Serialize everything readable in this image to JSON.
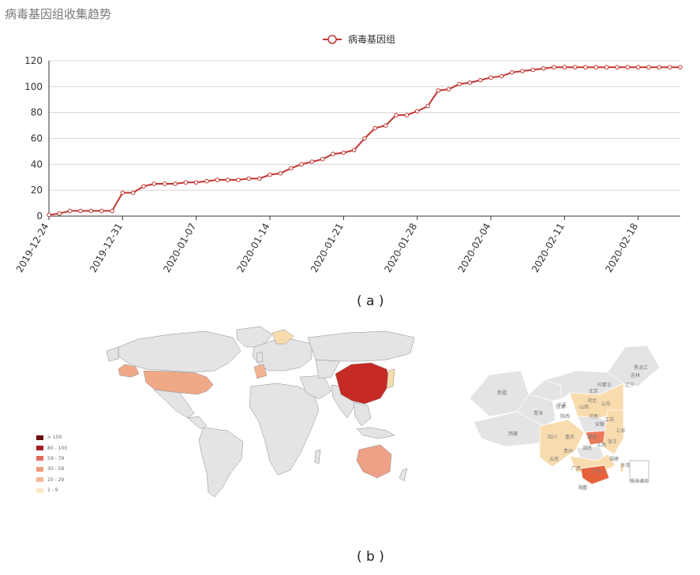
{
  "title": "病毒基因组收集趋势",
  "caption_a": "( a )",
  "caption_b": "( b )",
  "chart_data": {
    "type": "line",
    "series": [
      {
        "name": "病毒基因组",
        "color": "#c23531",
        "values": [
          1,
          2,
          4,
          4,
          4,
          4,
          4,
          18,
          18,
          23,
          25,
          25,
          25,
          26,
          26,
          27,
          28,
          28,
          28,
          29,
          29,
          32,
          33,
          37,
          40,
          42,
          44,
          48,
          49,
          51,
          60,
          68,
          70,
          78,
          78,
          81,
          85,
          97,
          98,
          102,
          103,
          105,
          107,
          108,
          111,
          112,
          113,
          114,
          115,
          115,
          115,
          115,
          115,
          115,
          115,
          115,
          115,
          115,
          115,
          115,
          115
        ]
      }
    ],
    "x_start": "2019-12-24",
    "x_end": "2020-02-22",
    "xticks": [
      "2019-12-24",
      "2019-12-31",
      "2020-01-07",
      "2020-01-14",
      "2020-01-21",
      "2020-01-28",
      "2020-02-04",
      "2020-02-11",
      "2020-02-18"
    ],
    "ylim": [
      0,
      120
    ],
    "yticks": [
      0,
      20,
      40,
      60,
      80,
      100,
      120
    ],
    "grid": true,
    "legend_position": "top-center"
  },
  "map_legend": [
    {
      "label": "> 100",
      "color": "#6b0f0f"
    },
    {
      "label": "80 - 100",
      "color": "#a31f1f"
    },
    {
      "label": "59 - 79",
      "color": "#e06a5a"
    },
    {
      "label": "30 - 59",
      "color": "#ef9a7a"
    },
    {
      "label": "10 - 29",
      "color": "#f3b79a"
    },
    {
      "label": "1 - 9",
      "color": "#fbe6c4"
    }
  ],
  "map_colors": {
    "base": "#e4e4e6",
    "china": "#c62a24",
    "usa": "#f0a987",
    "australia": "#eea186",
    "europe_hot": "#f4b393",
    "guangdong": "#e5623d",
    "hubei": "#ea7a59",
    "light": "#f9dcae"
  },
  "china_labels": [
    "黑龙江",
    "吉林",
    "辽宁",
    "内蒙古",
    "新疆",
    "西藏",
    "青海",
    "甘肃",
    "宁夏",
    "北京",
    "河北",
    "山西",
    "陕西",
    "山东",
    "河南",
    "江苏",
    "安徽",
    "四川",
    "重庆",
    "湖北",
    "湖南",
    "江西",
    "浙江",
    "贵州",
    "云南",
    "广西",
    "广东",
    "福建",
    "台湾",
    "海南",
    "上海",
    "南海诸岛"
  ]
}
